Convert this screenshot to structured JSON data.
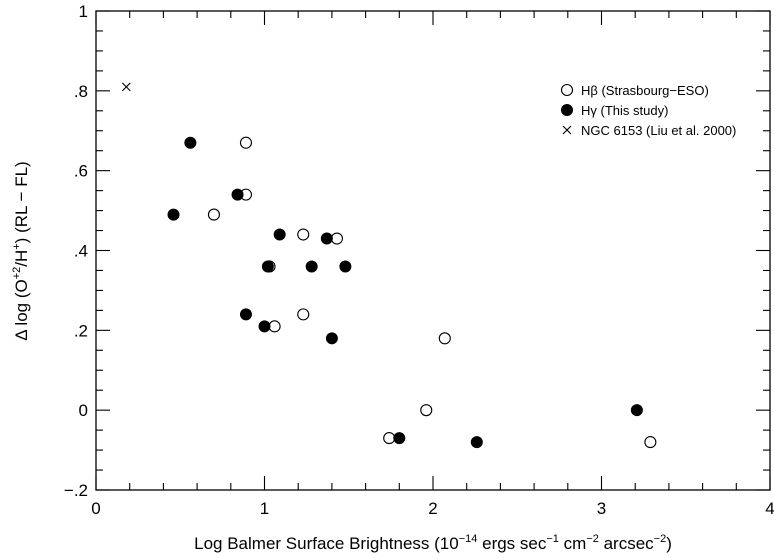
{
  "chart_data": {
    "type": "scatter",
    "xlim": [
      0,
      4
    ],
    "ylim": [
      -0.2,
      1.0
    ],
    "x_ticks": [
      {
        "value": 0,
        "label": "0"
      },
      {
        "value": 1,
        "label": "1"
      },
      {
        "value": 2,
        "label": "2"
      },
      {
        "value": 3,
        "label": "3"
      },
      {
        "value": 4,
        "label": "4"
      }
    ],
    "y_ticks": [
      {
        "value": -0.2,
        "label": "−.2"
      },
      {
        "value": 0,
        "label": "0"
      },
      {
        "value": 0.2,
        "label": ".2"
      },
      {
        "value": 0.4,
        "label": ".4"
      },
      {
        "value": 0.6,
        "label": ".6"
      },
      {
        "value": 0.8,
        "label": ".8"
      },
      {
        "value": 1.0,
        "label": "1"
      }
    ],
    "xlabel": {
      "prefix": "Log Balmer Surface Brightness (10",
      "exp1": "−14",
      "mid1": " ergs sec",
      "exp2": "−1",
      "mid2": " cm",
      "exp3": "−2",
      "suffix": " arcsec",
      "exp4": "−2",
      "close": ")"
    },
    "ylabel": {
      "prefix": "Δ log (O",
      "sup1": "+2",
      "mid": "/H",
      "sup2": "+",
      "suffix": ") (RL − FL)"
    },
    "legend_position": "top-right",
    "series": [
      {
        "name": "Hβ (Strasbourg−ESO)",
        "marker": "open-circle",
        "points": [
          [
            0.7,
            0.49
          ],
          [
            0.89,
            0.67
          ],
          [
            0.89,
            0.54
          ],
          [
            1.03,
            0.36
          ],
          [
            1.06,
            0.21
          ],
          [
            1.23,
            0.44
          ],
          [
            1.23,
            0.24
          ],
          [
            1.43,
            0.43
          ],
          [
            1.74,
            -0.07
          ],
          [
            1.96,
            0.0
          ],
          [
            2.07,
            0.18
          ],
          [
            3.29,
            -0.08
          ]
        ]
      },
      {
        "name": "Hγ (This study)",
        "marker": "filled-circle",
        "points": [
          [
            0.46,
            0.49
          ],
          [
            0.56,
            0.67
          ],
          [
            0.84,
            0.54
          ],
          [
            0.89,
            0.24
          ],
          [
            1.0,
            0.21
          ],
          [
            1.02,
            0.36
          ],
          [
            1.09,
            0.44
          ],
          [
            1.28,
            0.36
          ],
          [
            1.37,
            0.43
          ],
          [
            1.4,
            0.18
          ],
          [
            1.48,
            0.36
          ],
          [
            1.8,
            -0.07
          ],
          [
            2.26,
            -0.08
          ],
          [
            3.21,
            0.0
          ]
        ]
      },
      {
        "name": "NGC 6153 (Liu et al. 2000)",
        "marker": "cross",
        "points": [
          [
            0.18,
            0.81
          ]
        ]
      }
    ]
  }
}
